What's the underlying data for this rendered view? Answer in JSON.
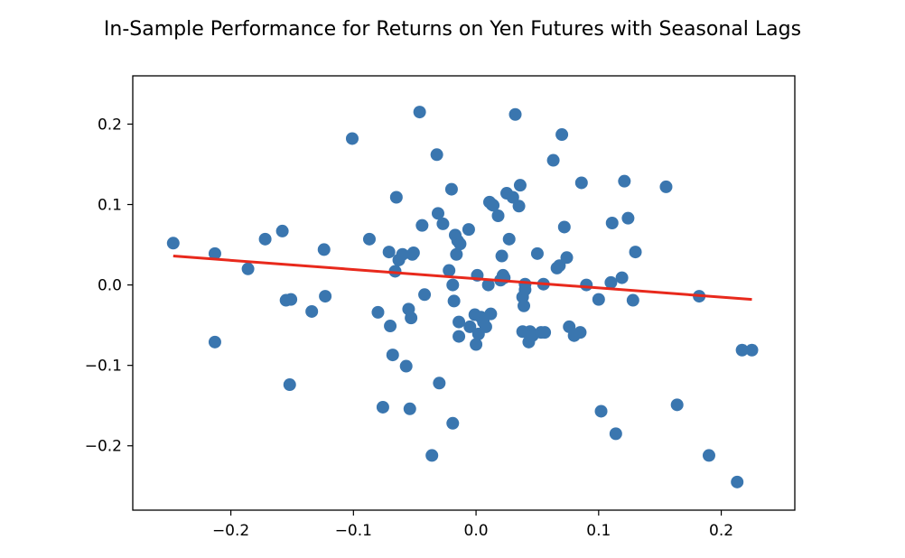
{
  "chart_data": {
    "type": "scatter",
    "title": "In-Sample Performance for Returns on Yen Futures with Seasonal Lags",
    "xlabel": "",
    "ylabel": "",
    "xlim": [
      -0.28,
      0.26
    ],
    "ylim": [
      -0.28,
      0.26
    ],
    "xticks": [
      -0.2,
      -0.1,
      0.0,
      0.1,
      0.2
    ],
    "yticks": [
      -0.2,
      -0.1,
      0.0,
      0.1,
      0.2
    ],
    "xtick_labels": [
      "−0.2",
      "−0.1",
      "0.0",
      "0.1",
      "0.2"
    ],
    "ytick_labels": [
      "−0.2",
      "−0.1",
      "0.0",
      "0.1",
      "0.2"
    ],
    "grid": false,
    "colors": {
      "points": "#3a76af",
      "line": "#e8291c"
    },
    "series": [
      {
        "kind": "points",
        "x": [
          -0.247,
          -0.213,
          -0.213,
          -0.186,
          -0.172,
          -0.158,
          -0.155,
          -0.151,
          -0.152,
          -0.134,
          -0.124,
          -0.123,
          -0.101,
          -0.087,
          -0.08,
          -0.076,
          -0.071,
          -0.07,
          -0.068,
          -0.066,
          -0.065,
          -0.063,
          -0.06,
          -0.057,
          -0.055,
          -0.054,
          -0.053,
          -0.052,
          -0.051,
          -0.046,
          -0.044,
          -0.042,
          -0.036,
          -0.032,
          -0.031,
          -0.03,
          -0.027,
          -0.022,
          -0.02,
          -0.019,
          -0.019,
          -0.018,
          -0.017,
          -0.016,
          -0.015,
          -0.014,
          -0.014,
          -0.013,
          -0.006,
          -0.005,
          -0.001,
          0.0,
          0.001,
          0.002,
          0.004,
          0.006,
          0.008,
          0.01,
          0.011,
          0.012,
          0.013,
          0.014,
          0.018,
          0.02,
          0.021,
          0.022,
          0.023,
          0.025,
          0.027,
          0.03,
          0.032,
          0.035,
          0.036,
          0.038,
          0.038,
          0.039,
          0.04,
          0.04,
          0.043,
          0.044,
          0.046,
          0.05,
          0.053,
          0.055,
          0.056,
          0.063,
          0.066,
          0.068,
          0.07,
          0.072,
          0.074,
          0.076,
          0.08,
          0.085,
          0.086,
          0.09,
          0.1,
          0.102,
          0.11,
          0.111,
          0.114,
          0.119,
          0.121,
          0.124,
          0.128,
          0.13,
          0.155,
          0.164,
          0.182,
          0.19,
          0.213,
          0.217,
          0.225
        ],
        "y": [
          0.052,
          0.039,
          -0.071,
          0.02,
          0.057,
          0.067,
          -0.019,
          -0.018,
          -0.124,
          -0.033,
          0.044,
          -0.014,
          0.182,
          0.057,
          -0.034,
          -0.152,
          0.041,
          -0.051,
          -0.087,
          0.017,
          0.109,
          0.031,
          0.038,
          -0.101,
          -0.03,
          -0.154,
          -0.041,
          0.038,
          0.04,
          0.215,
          0.074,
          -0.012,
          -0.212,
          0.162,
          0.089,
          -0.122,
          0.076,
          0.018,
          0.119,
          0.0,
          -0.172,
          -0.02,
          0.062,
          0.038,
          0.055,
          -0.046,
          -0.064,
          0.051,
          0.069,
          -0.052,
          -0.037,
          -0.074,
          0.012,
          -0.061,
          -0.04,
          -0.046,
          -0.052,
          0.0,
          0.103,
          -0.036,
          0.1,
          0.099,
          0.086,
          0.006,
          0.036,
          0.012,
          0.009,
          0.114,
          0.057,
          0.109,
          0.212,
          0.098,
          0.124,
          -0.058,
          -0.015,
          -0.026,
          0.001,
          -0.006,
          -0.071,
          -0.058,
          -0.063,
          0.039,
          -0.059,
          0.001,
          -0.059,
          0.155,
          0.021,
          0.024,
          0.187,
          0.072,
          0.034,
          -0.052,
          -0.063,
          -0.059,
          0.127,
          0.0,
          -0.018,
          -0.157,
          0.003,
          0.077,
          -0.185,
          0.009,
          0.129,
          0.083,
          -0.019,
          0.041,
          0.122,
          -0.149,
          -0.014,
          -0.212,
          -0.245,
          -0.081,
          -0.081
        ]
      },
      {
        "kind": "regression_line",
        "x": [
          -0.247,
          0.225
        ],
        "y": [
          0.036,
          -0.018
        ]
      }
    ]
  }
}
